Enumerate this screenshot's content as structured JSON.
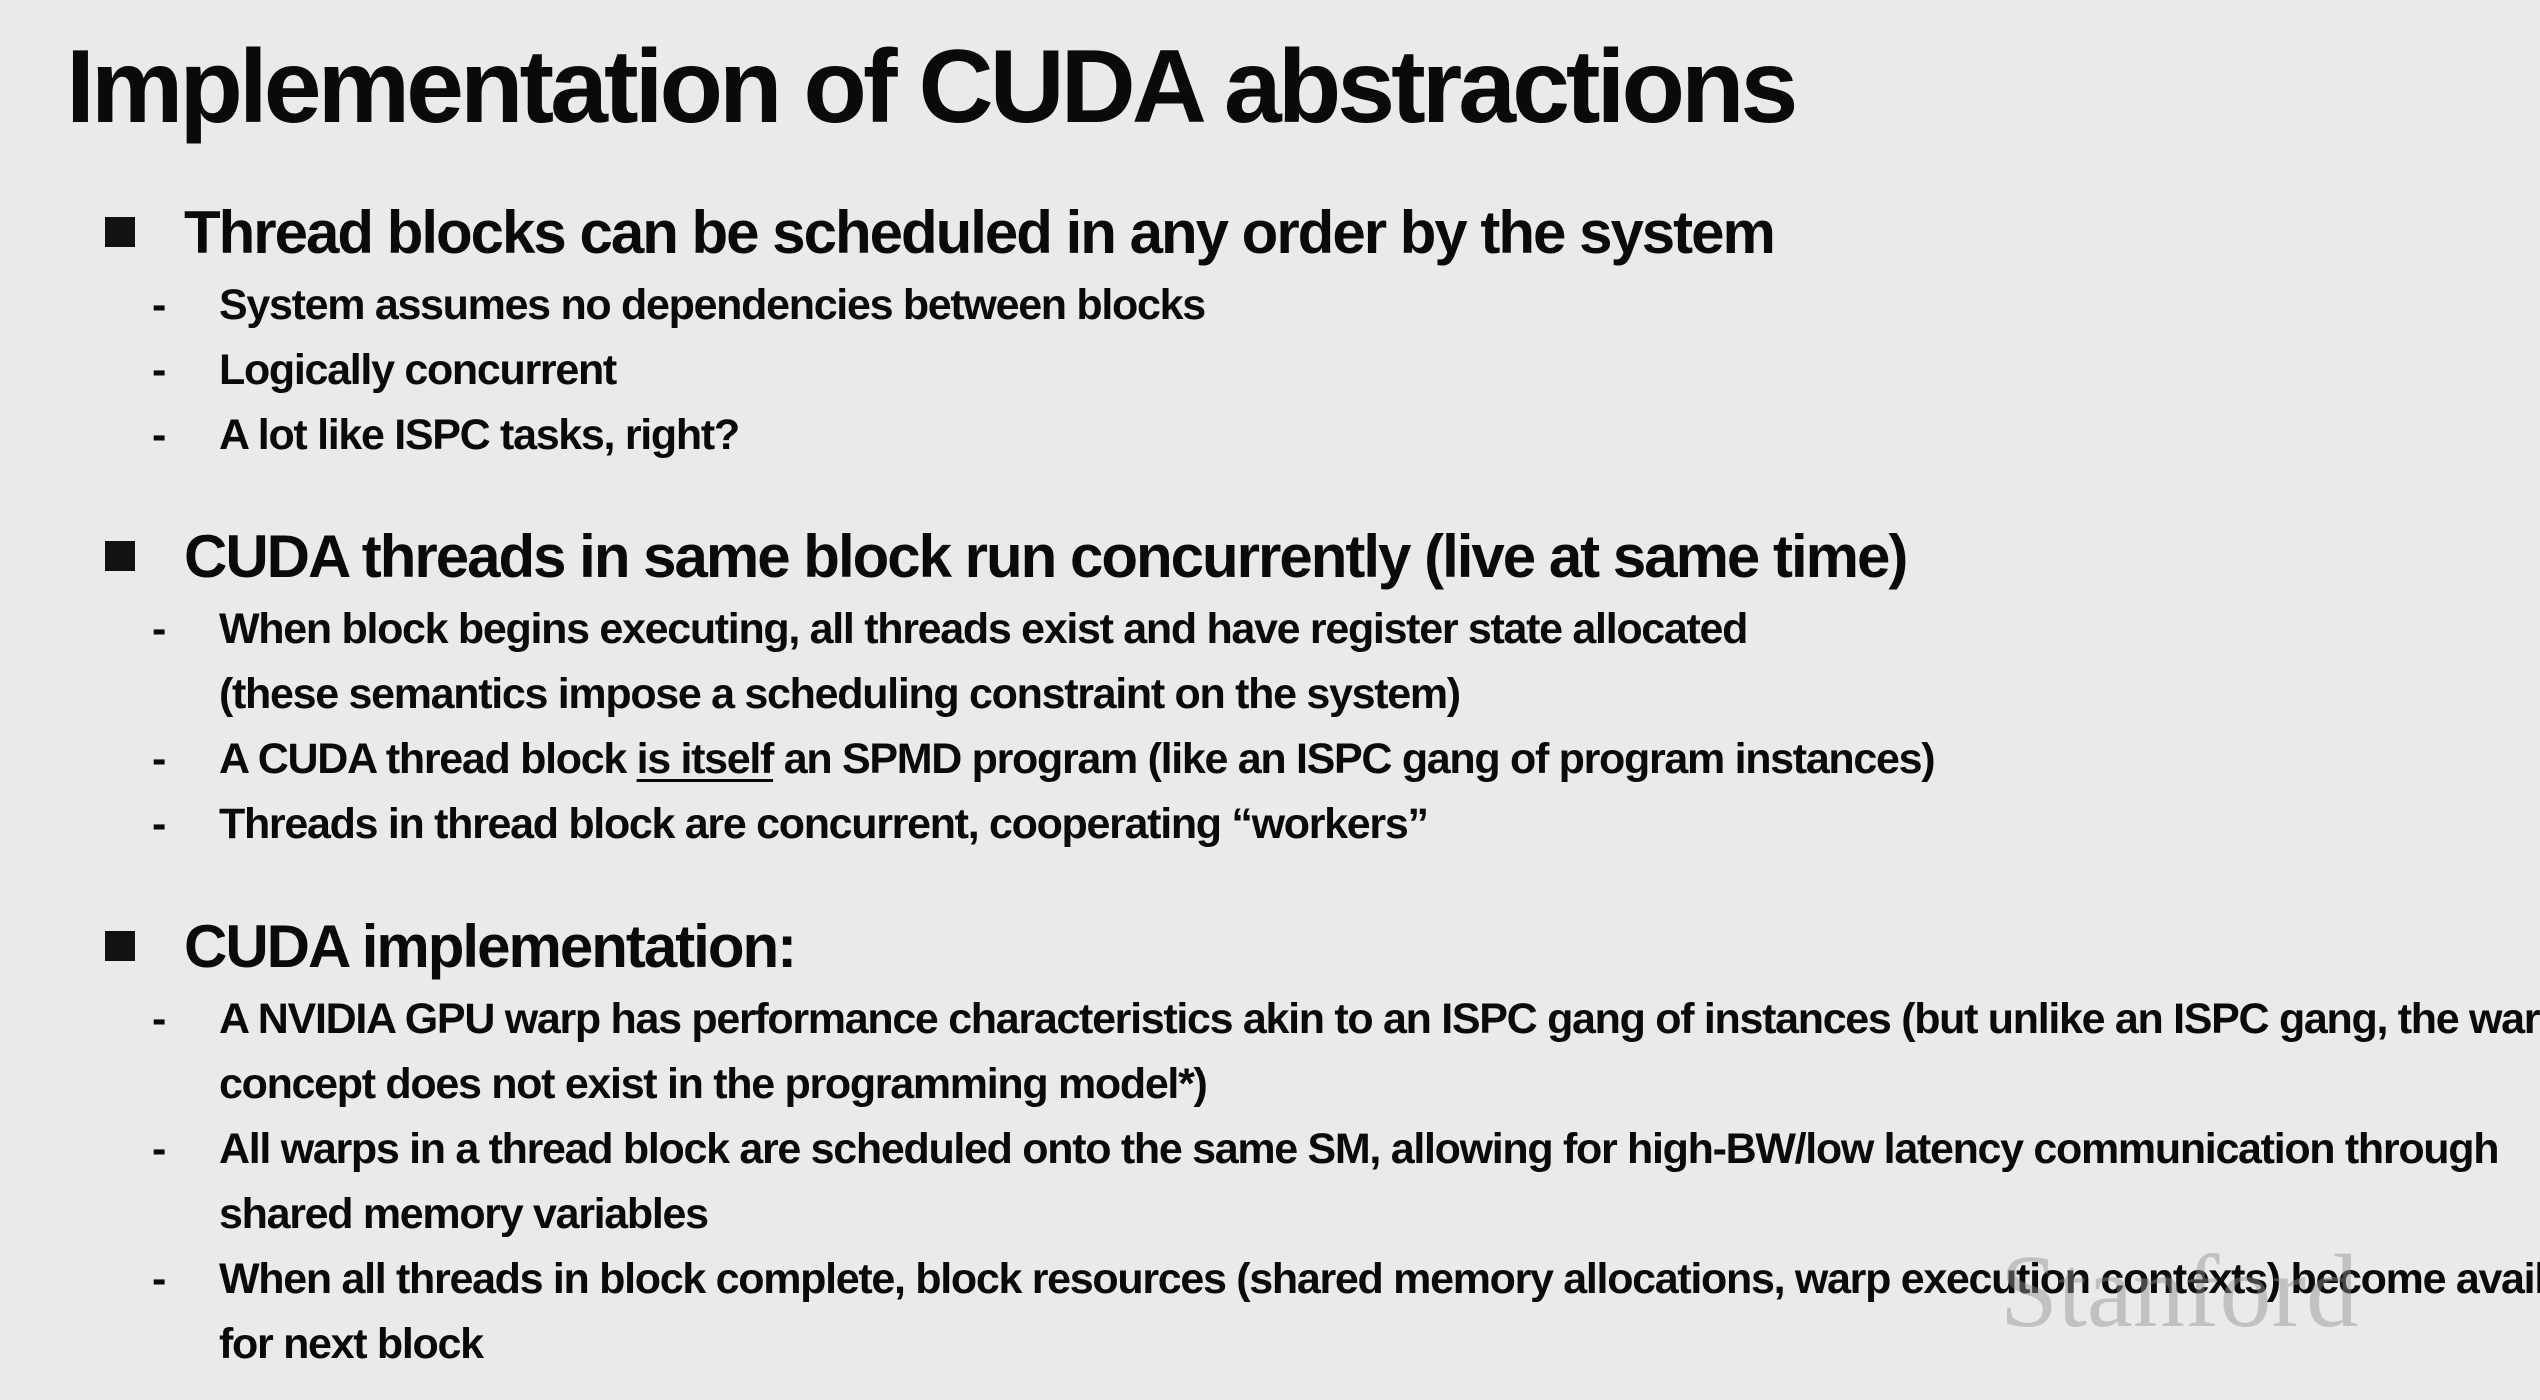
{
  "title": "Implementation of CUDA abstractions",
  "sections": [
    {
      "heading": "Thread blocks can be scheduled in any order by the system",
      "items": [
        {
          "text": "System assumes no dependencies between blocks"
        },
        {
          "text": "Logically concurrent"
        },
        {
          "text": "A lot like ISPC tasks, right?"
        }
      ]
    },
    {
      "heading": "CUDA threads in same block run concurrently (live at same time)",
      "items": [
        {
          "line1": "When block begins executing, all threads exist and have register state allocated",
          "line2": "(these semantics impose a scheduling constraint on the system)"
        },
        {
          "before": "A CUDA thread block ",
          "underlined": "is itself",
          "after": " an SPMD program (like an ISPC gang of program instances)"
        },
        {
          "text": "Threads in thread block are concurrent, cooperating “workers”"
        }
      ]
    },
    {
      "heading": "CUDA implementation:",
      "items": [
        {
          "line1": "A NVIDIA GPU warp has performance characteristics akin to an ISPC gang of instances (but unlike an ISPC gang, the warp",
          "line2": "concept does not exist in the programming model*)"
        },
        {
          "line1": "All warps in a thread block are scheduled onto the same SM, allowing for high-BW/low latency communication through",
          "line2": "shared memory variables"
        },
        {
          "line1": "When all threads in block complete, block resources (shared memory allocations, warp execution contexts) become available",
          "line2": "for next block"
        }
      ]
    }
  ],
  "bullet_marker": "-",
  "watermark": "Stanford"
}
